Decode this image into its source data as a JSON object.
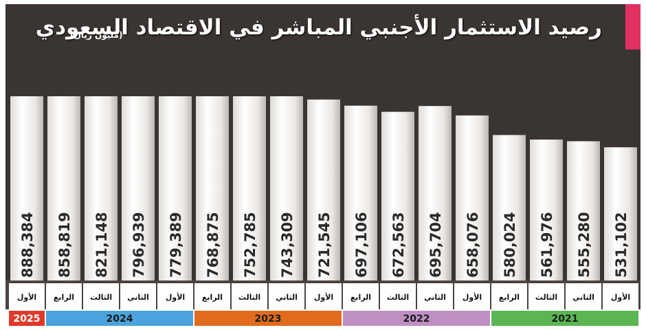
{
  "title": "رصيد الاستثمار الأجنبي المباشر في الاقتصاد السعودي",
  "unit": "(مليون ريال)",
  "colors": {
    "panel": "#3a3532",
    "accent": "#e03060",
    "quarter_strip": "#4a4441",
    "y2025": "#e03a2a",
    "y2024": "#4aa3dc",
    "y2023": "#e06b1c",
    "y2022": "#bf8fc4",
    "y2021": "#5ab552"
  },
  "chart_data": {
    "type": "bar",
    "title": "رصيد الاستثمار الأجنبي المباشر في الاقتصاد السعودي",
    "unit": "مليون ريال",
    "direction": "right-to-left",
    "grid": false,
    "legend": "none",
    "ylim": [
      0,
      900000
    ],
    "bars": [
      {
        "quarter": "الأول",
        "year": "2021",
        "value": 531102,
        "label": "531,102"
      },
      {
        "quarter": "الثاني",
        "year": "2021",
        "value": 555280,
        "label": "555,280"
      },
      {
        "quarter": "الثالث",
        "year": "2021",
        "value": 561976,
        "label": "561,976"
      },
      {
        "quarter": "الرابع",
        "year": "2021",
        "value": 580024,
        "label": "580,024"
      },
      {
        "quarter": "الأول",
        "year": "2022",
        "value": 658076,
        "label": "658,076"
      },
      {
        "quarter": "الثاني",
        "year": "2022",
        "value": 695704,
        "label": "695,704"
      },
      {
        "quarter": "الثالث",
        "year": "2022",
        "value": 672563,
        "label": "672,563"
      },
      {
        "quarter": "الرابع",
        "year": "2022",
        "value": 697106,
        "label": "697,106"
      },
      {
        "quarter": "الأول",
        "year": "2023",
        "value": 721545,
        "label": "721,545"
      },
      {
        "quarter": "الثاني",
        "year": "2023",
        "value": 743309,
        "label": "743,309"
      },
      {
        "quarter": "الثالث",
        "year": "2023",
        "value": 752785,
        "label": "752,785"
      },
      {
        "quarter": "الرابع",
        "year": "2023",
        "value": 768875,
        "label": "768,875"
      },
      {
        "quarter": "الأول",
        "year": "2024",
        "value": 779389,
        "label": "779,389"
      },
      {
        "quarter": "الثاني",
        "year": "2024",
        "value": 796939,
        "label": "796,939"
      },
      {
        "quarter": "الثالث",
        "year": "2024",
        "value": 821148,
        "label": "821,148"
      },
      {
        "quarter": "الرابع",
        "year": "2024",
        "value": 858819,
        "label": "858,819"
      },
      {
        "quarter": "الأول",
        "year": "2025",
        "value": 888384,
        "label": "888,384"
      }
    ],
    "years": [
      {
        "year": "2021",
        "color": "#5ab552"
      },
      {
        "year": "2022",
        "color": "#bf8fc4"
      },
      {
        "year": "2023",
        "color": "#e06b1c"
      },
      {
        "year": "2024",
        "color": "#4aa3dc"
      },
      {
        "year": "2025",
        "color": "#e03a2a"
      }
    ]
  }
}
